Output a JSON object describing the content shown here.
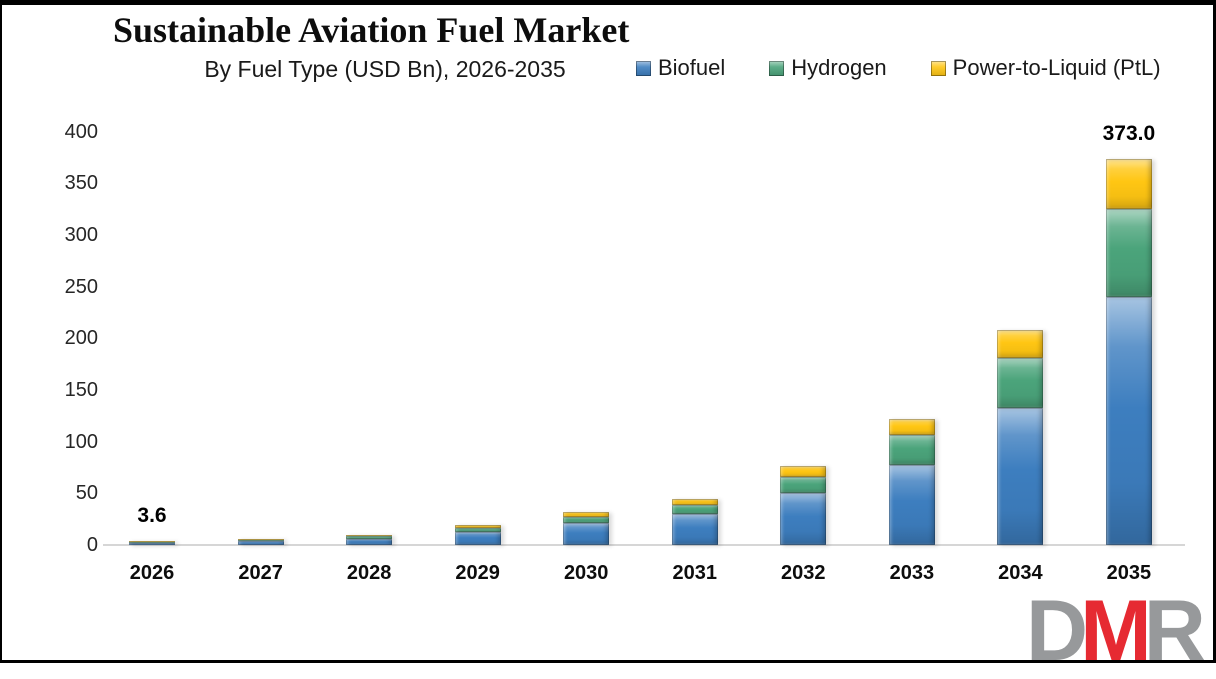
{
  "header": {
    "title": "Sustainable Aviation Fuel Market",
    "subtitle": "By Fuel Type (USD Bn), 2026-2035"
  },
  "chart_data": {
    "type": "bar",
    "stacked": true,
    "title": "Sustainable Aviation Fuel Market",
    "subtitle": "By Fuel Type (USD Bn), 2026-2035",
    "unit": "USD Bn",
    "categories": [
      "2026",
      "2027",
      "2028",
      "2029",
      "2030",
      "2031",
      "2032",
      "2033",
      "2034",
      "2035"
    ],
    "series": [
      {
        "name": "Biofuel",
        "color": "#3d7ebf",
        "values": [
          2.3,
          3.6,
          6.2,
          12.5,
          21.0,
          30.0,
          50.0,
          77.0,
          133.0,
          240.0
        ]
      },
      {
        "name": "Hydrogen",
        "color": "#4ba47b",
        "values": [
          0.8,
          1.2,
          2.1,
          4.0,
          6.0,
          9.0,
          15.5,
          29.0,
          48.0,
          85.0
        ]
      },
      {
        "name": "Power-to-Liquid (PtL)",
        "color": "#ffc613",
        "values": [
          0.5,
          0.7,
          1.2,
          2.5,
          4.5,
          6.0,
          11.0,
          16.0,
          27.0,
          48.0
        ]
      }
    ],
    "totals": [
      3.6,
      5.5,
      9.5,
      19.0,
      31.5,
      45.0,
      76.5,
      122.0,
      208.0,
      373.0
    ],
    "data_labels": [
      {
        "category": "2026",
        "text": "3.6"
      },
      {
        "category": "2035",
        "text": "373.0"
      }
    ],
    "y_ticks": [
      "0",
      "50",
      "100",
      "150",
      "200",
      "250",
      "300",
      "350",
      "400"
    ],
    "ylim": [
      0,
      400
    ],
    "grid": false,
    "legend_position": "top-right"
  },
  "watermark": {
    "text": "DMR",
    "letters": [
      {
        "char": "D",
        "color": "#97999b"
      },
      {
        "char": "M",
        "color": "#e62a32"
      },
      {
        "char": "R",
        "color": "#97999b"
      }
    ]
  }
}
